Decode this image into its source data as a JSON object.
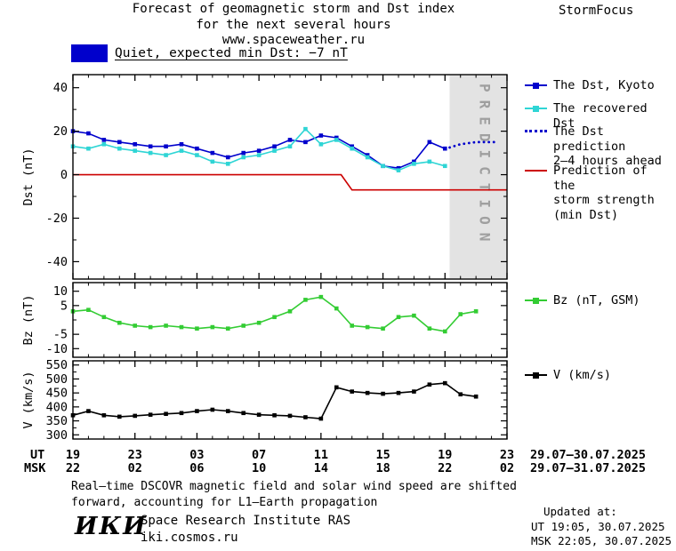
{
  "header": {
    "title_line1": "Forecast of geomagnetic storm and Dst index",
    "title_line2": "for the next several hours",
    "website": "www.spaceweather.ru",
    "brand": "StormFocus"
  },
  "status": {
    "level": "Quiet",
    "text": "Quiet, expected min Dst: −7 nT",
    "color": "#0000cc"
  },
  "legend": {
    "dst_kyoto": "The Dst, Kyoto",
    "dst_recovered": "The recovered Dst",
    "dst_prediction": [
      "The Dst prediction",
      "2–4 hours ahead"
    ],
    "storm_prediction": [
      "Prediction of the",
      "storm strength",
      "(min Dst)"
    ],
    "bz": "Bz (nT, GSM)",
    "v": "V (km/s)"
  },
  "chart_data": {
    "type": "line",
    "x_hours_span": [
      0,
      28
    ],
    "xaxis": {
      "ut_label": "UT",
      "msk_label": "MSK",
      "tick_hours": [
        0,
        4,
        8,
        12,
        16,
        20,
        24,
        28
      ],
      "ut_ticks": [
        "19",
        "23",
        "03",
        "07",
        "11",
        "15",
        "19",
        "23"
      ],
      "msk_ticks": [
        "22",
        "02",
        "06",
        "10",
        "14",
        "18",
        "22",
        "02"
      ],
      "ut_dates": "29.07–30.07.2025",
      "msk_dates": "29.07–31.07.2025"
    },
    "panels": [
      {
        "id": "dst",
        "ylabel": "Dst (nT)",
        "ylim": [
          -48,
          46
        ],
        "yticks": [
          40,
          20,
          0,
          -20,
          -40
        ],
        "yticks_minor": [
          30,
          10,
          -10,
          -30
        ],
        "prediction_zone": {
          "start_h": 24.3,
          "end_h": 28,
          "label": "PREDICTION"
        },
        "series": [
          {
            "name": "The Dst, Kyoto",
            "color": "#0000cc",
            "style": "solid",
            "marker": "square",
            "x": [
              0,
              1,
              2,
              3,
              4,
              5,
              6,
              7,
              8,
              9,
              10,
              11,
              12,
              13,
              14,
              15,
              16,
              17,
              18,
              19,
              20,
              21,
              22,
              23,
              24
            ],
            "y": [
              20,
              19,
              16,
              15,
              14,
              13,
              13,
              14,
              12,
              10,
              8,
              10,
              11,
              13,
              16,
              15,
              18,
              17,
              13,
              9,
              4,
              3,
              6,
              15,
              12
            ]
          },
          {
            "name": "The recovered Dst",
            "color": "#2fd5d5",
            "style": "solid",
            "marker": "square",
            "x": [
              0,
              1,
              2,
              3,
              4,
              5,
              6,
              7,
              8,
              9,
              10,
              11,
              12,
              13,
              14,
              15,
              16,
              17,
              18,
              19,
              20,
              21,
              22,
              23,
              24
            ],
            "y": [
              13,
              12,
              14,
              12,
              11,
              10,
              9,
              11,
              9,
              6,
              5,
              8,
              9,
              11,
              13,
              21,
              14,
              16,
              12,
              8,
              4,
              2,
              5,
              6,
              4
            ]
          },
          {
            "name": "The Dst prediction 2–4 hours ahead",
            "color": "#0000cc",
            "style": "dotted",
            "marker": "none",
            "x": [
              24.3,
              25,
              26,
              27.3
            ],
            "y": [
              12.5,
              14,
              15,
              15
            ]
          },
          {
            "name": "Prediction of the storm strength (min Dst)",
            "color": "#cc0000",
            "style": "solid",
            "marker": "none",
            "x": [
              0,
              17.3,
              18,
              28
            ],
            "y": [
              0,
              0,
              -7,
              -7
            ]
          }
        ]
      },
      {
        "id": "bz",
        "ylabel": "Bz (nT)",
        "ylim": [
          -13,
          13
        ],
        "yticks": [
          10,
          5,
          -5,
          -10
        ],
        "yticks_minor": [
          0
        ],
        "series": [
          {
            "name": "Bz (nT, GSM)",
            "color": "#33cc33",
            "style": "solid",
            "marker": "square",
            "x": [
              0,
              1,
              2,
              3,
              4,
              5,
              6,
              7,
              8,
              9,
              10,
              11,
              12,
              13,
              14,
              15,
              16,
              17,
              18,
              19,
              20,
              21,
              22,
              23,
              24,
              25,
              26
            ],
            "y": [
              3,
              3.5,
              1,
              -1,
              -2,
              -2.5,
              -2,
              -2.5,
              -3,
              -2.5,
              -3,
              -2,
              -1,
              1,
              3,
              7,
              8,
              4,
              -2,
              -2.5,
              -3,
              1,
              1.5,
              -3,
              -4,
              2,
              3
            ]
          }
        ]
      },
      {
        "id": "v",
        "ylabel": "V (km/s)",
        "ylim": [
          285,
          565
        ],
        "yticks": [
          550,
          500,
          450,
          400,
          350,
          300
        ],
        "yticks_minor": [
          525,
          475,
          425,
          375,
          325
        ],
        "series": [
          {
            "name": "V (km/s)",
            "color": "#000000",
            "style": "solid",
            "marker": "square",
            "x": [
              0,
              1,
              2,
              3,
              4,
              5,
              6,
              7,
              8,
              9,
              10,
              11,
              12,
              13,
              14,
              15,
              16,
              17,
              18,
              19,
              20,
              21,
              22,
              23,
              24,
              25,
              26
            ],
            "y": [
              370,
              385,
              370,
              365,
              368,
              372,
              375,
              378,
              385,
              390,
              385,
              378,
              372,
              370,
              368,
              363,
              358,
              470,
              455,
              450,
              447,
              450,
              455,
              480,
              485,
              445,
              437
            ]
          }
        ]
      }
    ]
  },
  "footer": {
    "note_line1": "Real–time DSCOVR magnetic field and solar wind speed are shifted",
    "note_line2": "forward, accounting for L1–Earth propagation",
    "updated_label": "Updated at:",
    "updated_ut": "UT  19:05, 30.07.2025",
    "updated_msk": "MSK 22:05, 30.07.2025",
    "logo": "ИКИ",
    "institute": "Space Research Institute RAS",
    "website": "iki.cosmos.ru"
  }
}
